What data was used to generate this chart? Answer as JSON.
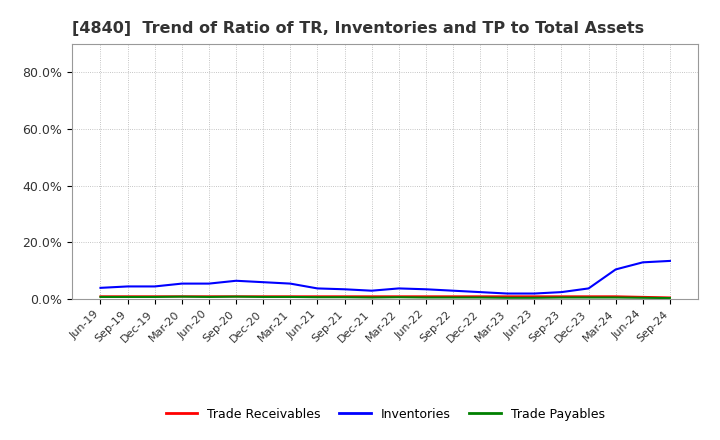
{
  "title": "[4840]  Trend of Ratio of TR, Inventories and TP to Total Assets",
  "title_color": "#333333",
  "title_fontsize": 11.5,
  "background_color": "#ffffff",
  "plot_bg_color": "#ffffff",
  "grid_color": "#aaaaaa",
  "ylim": [
    0.0,
    0.9
  ],
  "yticks": [
    0.0,
    0.2,
    0.4,
    0.6,
    0.8
  ],
  "ytick_labels": [
    "0.0%",
    "20.0%",
    "40.0%",
    "60.0%",
    "80.0%"
  ],
  "x_labels": [
    "Jun-19",
    "Sep-19",
    "Dec-19",
    "Mar-20",
    "Jun-20",
    "Sep-20",
    "Dec-20",
    "Mar-21",
    "Jun-21",
    "Sep-21",
    "Dec-21",
    "Mar-22",
    "Jun-22",
    "Sep-22",
    "Dec-22",
    "Mar-23",
    "Jun-23",
    "Sep-23",
    "Dec-23",
    "Mar-24",
    "Jun-24",
    "Sep-24"
  ],
  "trade_receivables": [
    0.01,
    0.01,
    0.01,
    0.01,
    0.01,
    0.01,
    0.01,
    0.01,
    0.01,
    0.01,
    0.01,
    0.01,
    0.01,
    0.01,
    0.01,
    0.01,
    0.01,
    0.01,
    0.01,
    0.01,
    0.008,
    0.006
  ],
  "inventories": [
    0.04,
    0.045,
    0.045,
    0.055,
    0.055,
    0.065,
    0.06,
    0.055,
    0.038,
    0.035,
    0.03,
    0.038,
    0.035,
    0.03,
    0.025,
    0.02,
    0.02,
    0.025,
    0.038,
    0.105,
    0.13,
    0.135
  ],
  "trade_payables": [
    0.008,
    0.008,
    0.008,
    0.009,
    0.008,
    0.009,
    0.008,
    0.008,
    0.007,
    0.007,
    0.006,
    0.007,
    0.006,
    0.006,
    0.006,
    0.005,
    0.005,
    0.006,
    0.006,
    0.006,
    0.005,
    0.004
  ],
  "line_colors": {
    "trade_receivables": "#ff0000",
    "inventories": "#0000ff",
    "trade_payables": "#008000"
  },
  "legend_labels": [
    "Trade Receivables",
    "Inventories",
    "Trade Payables"
  ],
  "legend_colors": [
    "#ff0000",
    "#0000ff",
    "#008000"
  ]
}
